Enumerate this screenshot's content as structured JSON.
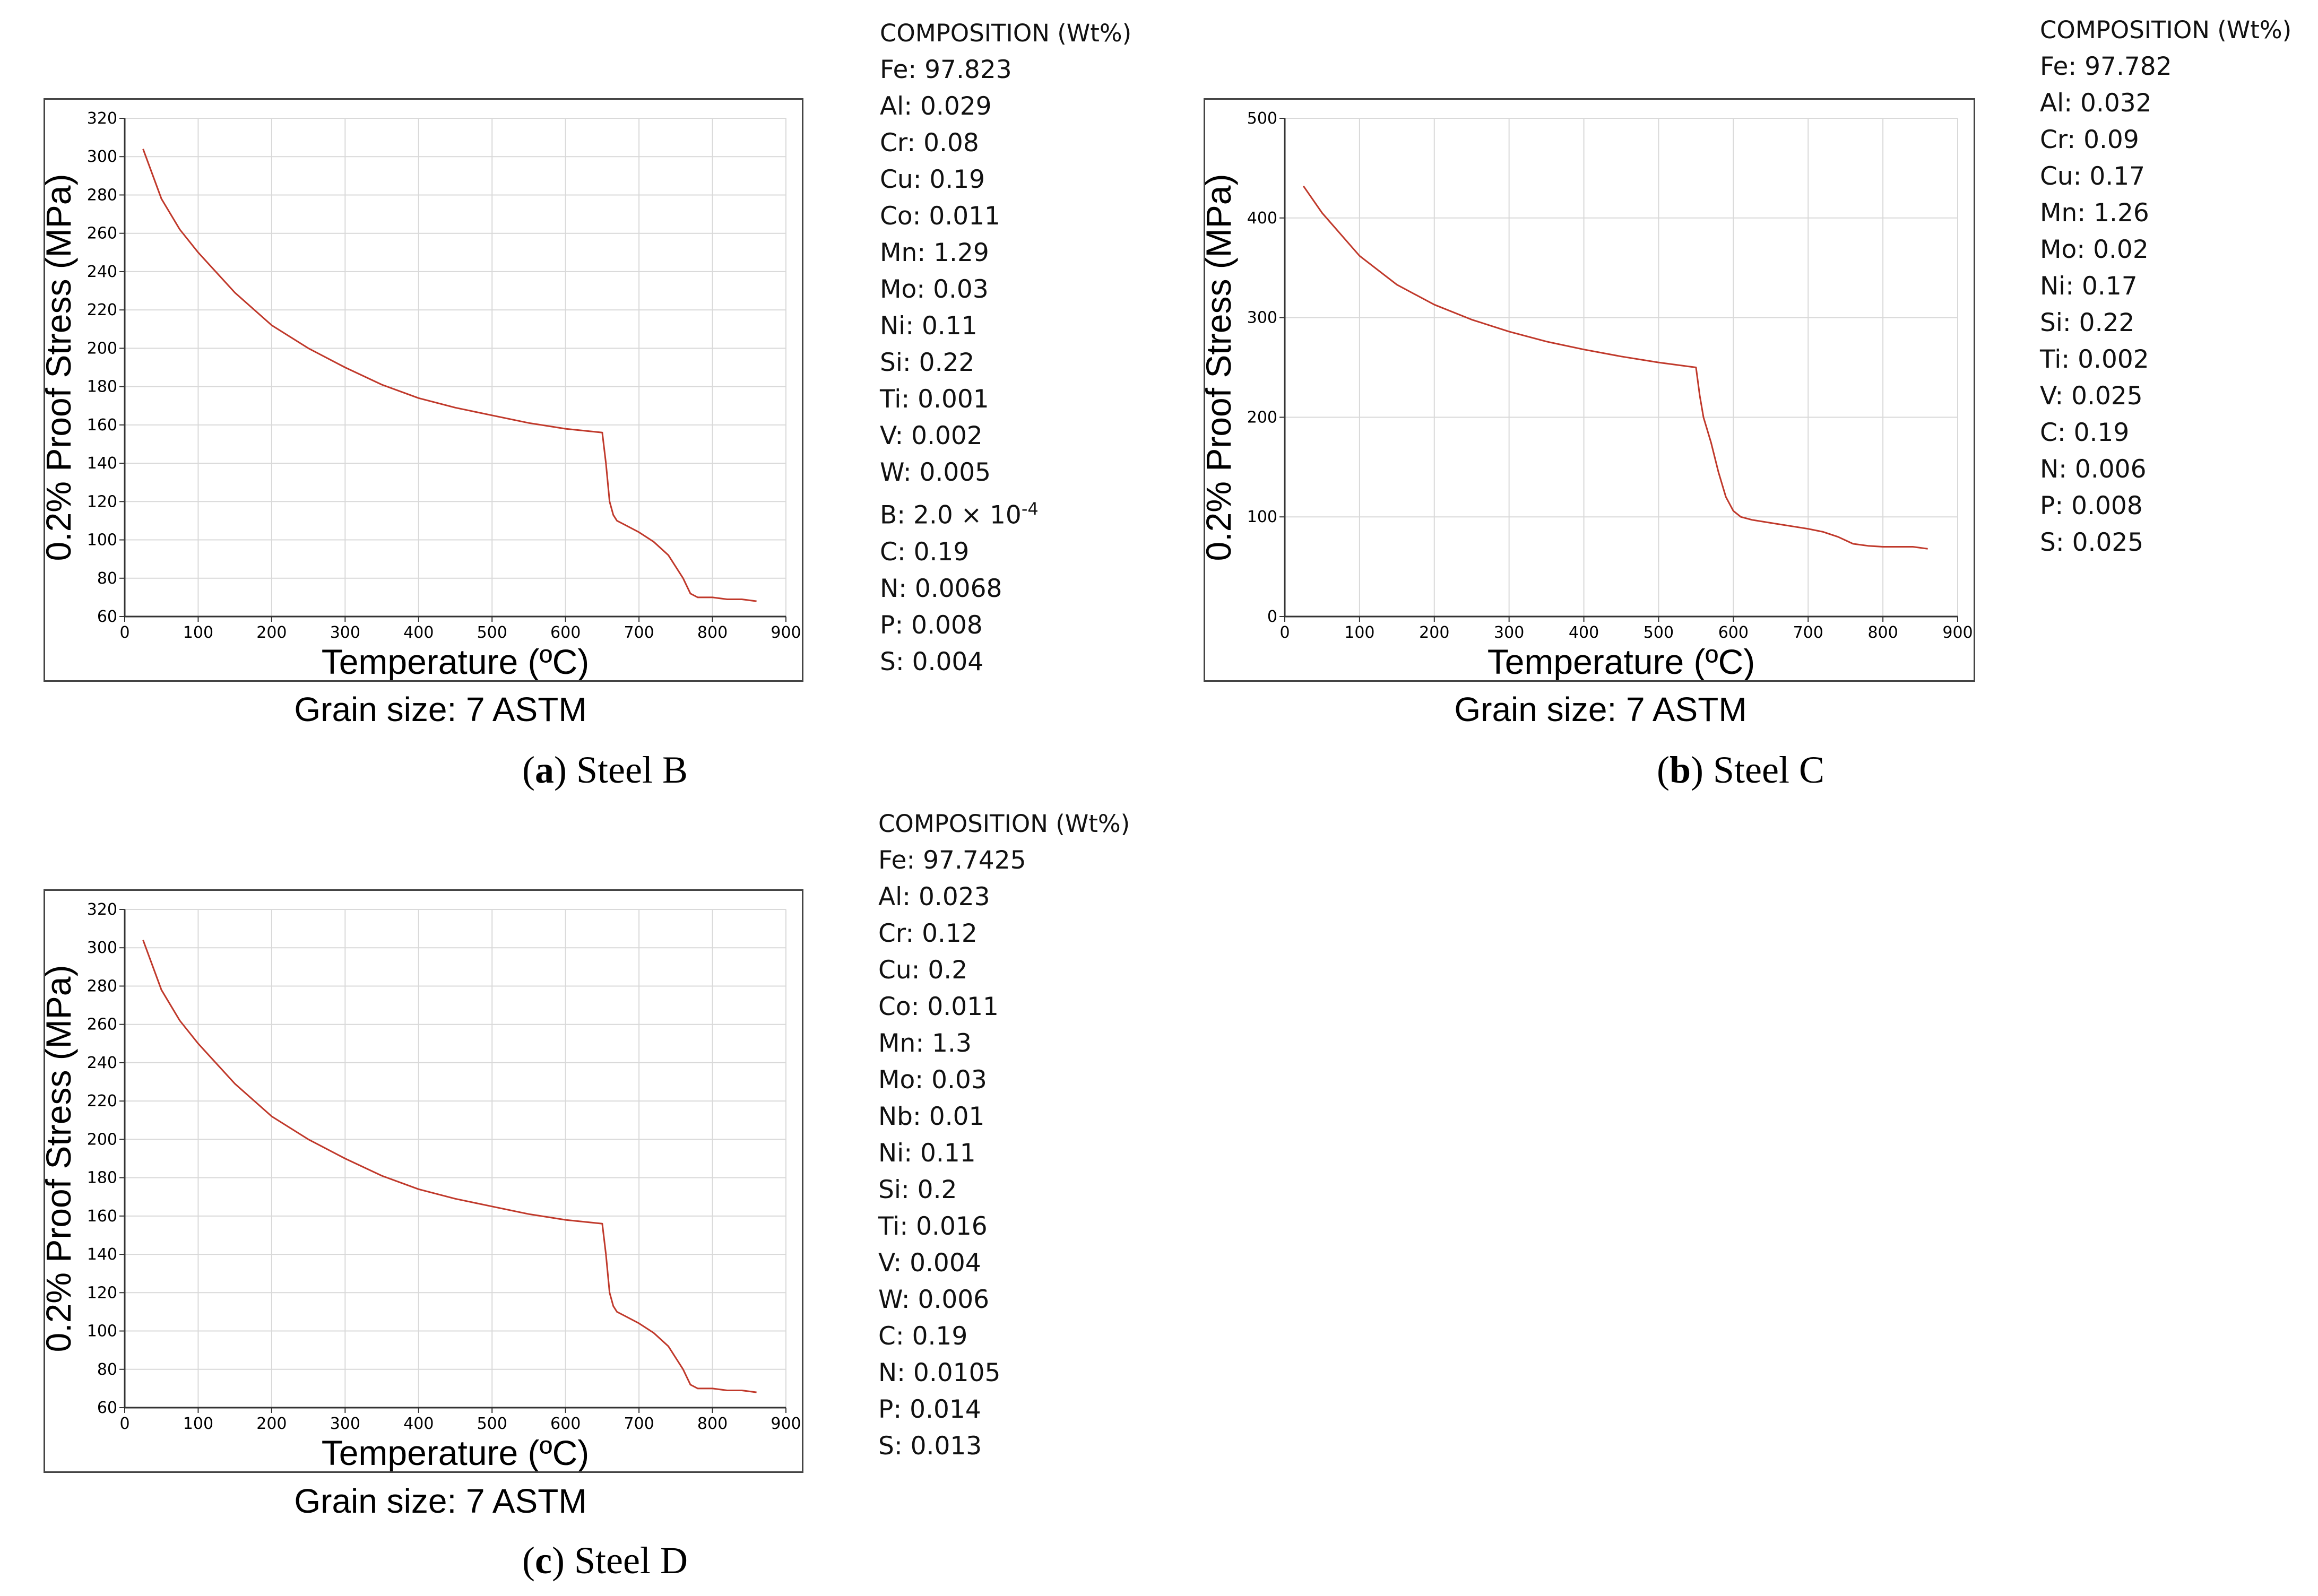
{
  "panels": [
    {
      "id": "a",
      "caption_letter": "a",
      "caption_text": " Steel B",
      "grain_size": "Grain size: 7 ASTM",
      "composition_title": "COMPOSITION (Wt%)",
      "composition": [
        "Fe: 97.823",
        "Al: 0.029",
        "Cr: 0.08",
        "Cu: 0.19",
        "Co: 0.011",
        "Mn: 1.29",
        "Mo: 0.03",
        "Ni: 0.11",
        "Si: 0.22",
        "Ti: 0.001",
        "V: 0.002",
        "W: 0.005",
        "B: 2.0 × 10",
        "C: 0.19",
        "N: 0.0068",
        "P: 0.008",
        "S: 0.004"
      ],
      "composition_sup": {
        "12": "-4"
      }
    },
    {
      "id": "b",
      "caption_letter": "b",
      "caption_text": " Steel C",
      "grain_size": "Grain size: 7 ASTM",
      "composition_title": "COMPOSITION (Wt%)",
      "composition": [
        "Fe: 97.782",
        "Al: 0.032",
        "Cr: 0.09",
        "Cu: 0.17",
        "Mn: 1.26",
        "Mo: 0.02",
        "Ni: 0.17",
        "Si: 0.22",
        "Ti: 0.002",
        "V: 0.025",
        "C: 0.19",
        "N: 0.006",
        "P: 0.008",
        "S: 0.025"
      ],
      "composition_sup": {}
    },
    {
      "id": "c",
      "caption_letter": "c",
      "caption_text": " Steel D",
      "grain_size": "Grain size: 7 ASTM",
      "composition_title": "COMPOSITION (Wt%)",
      "composition": [
        "Fe: 97.7425",
        "Al: 0.023",
        "Cr: 0.12",
        "Cu: 0.2",
        "Co: 0.011",
        "Mn: 1.3",
        "Mo: 0.03",
        "Nb: 0.01",
        "Ni: 0.11",
        "Si: 0.2",
        "Ti: 0.016",
        "V: 0.004",
        "W: 0.006",
        "C: 0.19",
        "N: 0.0105",
        "P: 0.014",
        "S: 0.013"
      ],
      "composition_sup": {}
    }
  ],
  "colors": {
    "line": "#c0392b",
    "grid": "#d9d9d9",
    "axis": "#333333"
  },
  "chart_data": [
    {
      "type": "line",
      "title": "",
      "xlabel": "Temperature (ºC)",
      "ylabel": "0.2% Proof Stress (MPa)",
      "xlim": [
        0,
        900
      ],
      "ylim": [
        60,
        320
      ],
      "xticks": [
        0,
        100,
        200,
        300,
        400,
        500,
        600,
        700,
        800,
        900
      ],
      "yticks": [
        60,
        80,
        100,
        120,
        140,
        160,
        180,
        200,
        220,
        240,
        260,
        280,
        300,
        320
      ],
      "series": [
        {
          "name": "Steel B",
          "x": [
            25,
            50,
            75,
            100,
            150,
            200,
            250,
            300,
            350,
            400,
            450,
            500,
            550,
            600,
            650,
            655,
            660,
            665,
            670,
            680,
            700,
            720,
            740,
            760,
            770,
            780,
            800,
            820,
            840,
            860
          ],
          "y": [
            304,
            278,
            262,
            250,
            229,
            212,
            200,
            190,
            181,
            174,
            169,
            165,
            161,
            158,
            156,
            140,
            120,
            113,
            110,
            108,
            104,
            99,
            92,
            80,
            72,
            70,
            70,
            69,
            69,
            68
          ]
        }
      ]
    },
    {
      "type": "line",
      "title": "",
      "xlabel": "Temperature (ºC)",
      "ylabel": "0.2% Proof Stress (MPa)",
      "xlim": [
        0,
        900
      ],
      "ylim": [
        0,
        500
      ],
      "xticks": [
        0,
        100,
        200,
        300,
        400,
        500,
        600,
        700,
        800,
        900
      ],
      "yticks": [
        0,
        100,
        200,
        300,
        400,
        500
      ],
      "series": [
        {
          "name": "Steel C",
          "x": [
            25,
            50,
            100,
            150,
            200,
            250,
            300,
            350,
            400,
            450,
            500,
            550,
            555,
            560,
            570,
            580,
            590,
            600,
            610,
            625,
            650,
            700,
            720,
            740,
            760,
            780,
            800,
            820,
            840,
            860
          ],
          "y": [
            432,
            405,
            362,
            333,
            313,
            298,
            286,
            276,
            268,
            261,
            255,
            250,
            222,
            200,
            175,
            145,
            120,
            106,
            100,
            97,
            94,
            88,
            85,
            80,
            73,
            71,
            70,
            70,
            70,
            68
          ]
        }
      ]
    },
    {
      "type": "line",
      "title": "",
      "xlabel": "Temperature (ºC)",
      "ylabel": "0.2% Proof Stress (MPa)",
      "xlim": [
        0,
        900
      ],
      "ylim": [
        60,
        320
      ],
      "xticks": [
        0,
        100,
        200,
        300,
        400,
        500,
        600,
        700,
        800,
        900
      ],
      "yticks": [
        60,
        80,
        100,
        120,
        140,
        160,
        180,
        200,
        220,
        240,
        260,
        280,
        300,
        320
      ],
      "series": [
        {
          "name": "Steel D",
          "x": [
            25,
            50,
            75,
            100,
            150,
            200,
            250,
            300,
            350,
            400,
            450,
            500,
            550,
            600,
            650,
            655,
            660,
            665,
            670,
            680,
            700,
            720,
            740,
            760,
            770,
            780,
            800,
            820,
            840,
            860
          ],
          "y": [
            304,
            278,
            262,
            250,
            229,
            212,
            200,
            190,
            181,
            174,
            169,
            165,
            161,
            158,
            156,
            140,
            120,
            113,
            110,
            108,
            104,
            99,
            92,
            80,
            72,
            70,
            70,
            69,
            69,
            68
          ]
        }
      ]
    }
  ]
}
